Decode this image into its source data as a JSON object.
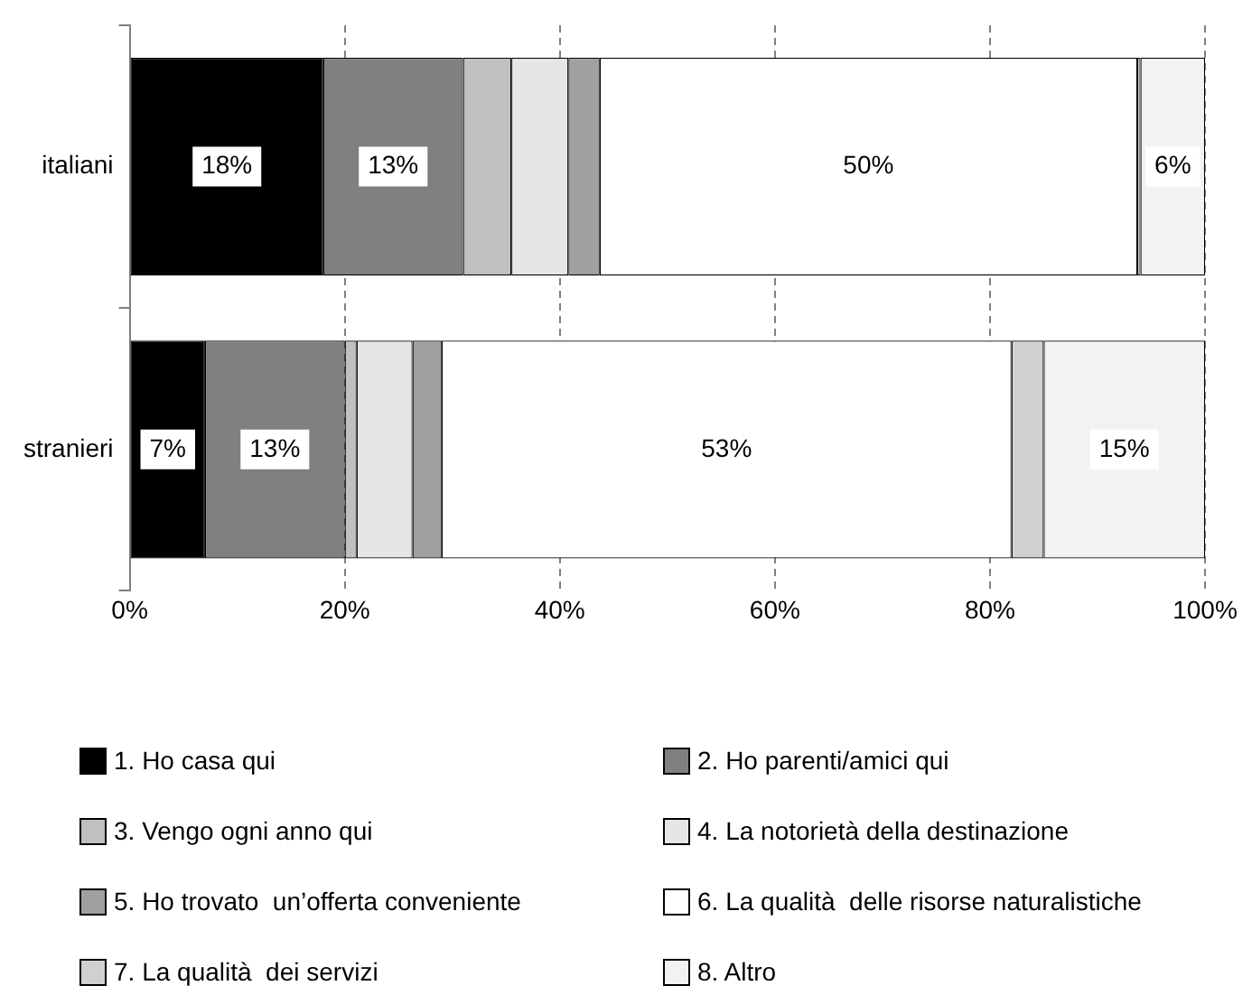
{
  "chart_data": {
    "type": "bar",
    "orientation": "horizontal",
    "stacked": true,
    "categories": [
      "italiani",
      "stranieri"
    ],
    "series": [
      {
        "name": "1. Ho casa qui",
        "color": "#000000",
        "values": [
          18,
          7
        ],
        "value_labels": [
          "18%",
          "7%"
        ]
      },
      {
        "name": "2. Ho parenti/amici qui",
        "color": "#808080",
        "values": [
          13,
          13
        ],
        "value_labels": [
          "13%",
          "13%"
        ]
      },
      {
        "name": "3. Vengo ogni anno qui",
        "color": "#c0c0c0",
        "values": [
          4.5,
          1.1
        ]
      },
      {
        "name": "4. La notorietà della destinazione",
        "color": "#e6e6e6",
        "values": [
          5.3,
          5.2
        ]
      },
      {
        "name": "5. Ho trovato  un’offerta conveniente",
        "color": "#a0a0a0",
        "values": [
          2.9,
          2.7
        ]
      },
      {
        "name": "6. La qualità  delle risorse naturalistiche",
        "color": "#ffffff",
        "values": [
          50,
          53
        ],
        "value_labels": [
          "50%",
          "53%"
        ]
      },
      {
        "name": "7. La qualità  dei servizi",
        "color": "#d0d0d0",
        "values": [
          0.3,
          3
        ]
      },
      {
        "name": "8. Altro",
        "color": "#f2f2f2",
        "values": [
          6,
          15
        ],
        "value_labels": [
          "6%",
          "15%"
        ]
      }
    ],
    "xlim": [
      0,
      100
    ],
    "xticks": [
      {
        "value": 0,
        "label": "0%"
      },
      {
        "value": 20,
        "label": "20%"
      },
      {
        "value": 40,
        "label": "40%"
      },
      {
        "value": 60,
        "label": "60%"
      },
      {
        "value": 80,
        "label": "80%"
      },
      {
        "value": 100,
        "label": "100%"
      }
    ],
    "grid": "x",
    "legend": "bottom"
  }
}
